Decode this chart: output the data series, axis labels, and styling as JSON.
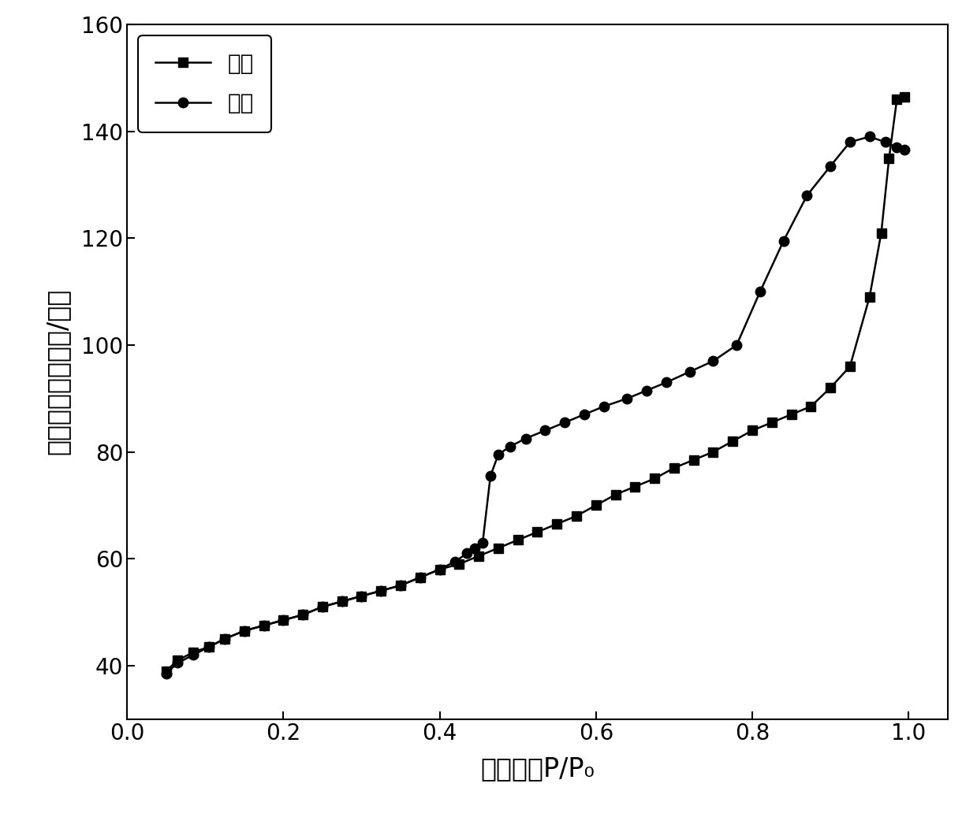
{
  "desorption_x": [
    0.05,
    0.065,
    0.085,
    0.105,
    0.125,
    0.15,
    0.175,
    0.2,
    0.225,
    0.25,
    0.275,
    0.3,
    0.325,
    0.35,
    0.375,
    0.4,
    0.425,
    0.45,
    0.475,
    0.5,
    0.525,
    0.55,
    0.575,
    0.6,
    0.625,
    0.65,
    0.675,
    0.7,
    0.725,
    0.75,
    0.775,
    0.8,
    0.825,
    0.85,
    0.875,
    0.9,
    0.925,
    0.95,
    0.965,
    0.975,
    0.985,
    0.995
  ],
  "desorption_y": [
    39.0,
    41.0,
    42.5,
    43.5,
    45.0,
    46.5,
    47.5,
    48.5,
    49.5,
    51.0,
    52.0,
    53.0,
    54.0,
    55.0,
    56.5,
    58.0,
    59.0,
    60.5,
    62.0,
    63.5,
    65.0,
    66.5,
    68.0,
    70.0,
    72.0,
    73.5,
    75.0,
    77.0,
    78.5,
    80.0,
    82.0,
    84.0,
    85.5,
    87.0,
    88.5,
    92.0,
    96.0,
    109.0,
    121.0,
    135.0,
    146.0,
    146.5
  ],
  "adsorption_x": [
    0.05,
    0.065,
    0.085,
    0.105,
    0.125,
    0.15,
    0.175,
    0.2,
    0.225,
    0.25,
    0.275,
    0.3,
    0.325,
    0.35,
    0.375,
    0.4,
    0.42,
    0.435,
    0.445,
    0.455,
    0.465,
    0.475,
    0.49,
    0.51,
    0.535,
    0.56,
    0.585,
    0.61,
    0.64,
    0.665,
    0.69,
    0.72,
    0.75,
    0.78,
    0.81,
    0.84,
    0.87,
    0.9,
    0.925,
    0.95,
    0.97,
    0.985,
    0.995
  ],
  "adsorption_y": [
    38.5,
    40.5,
    42.0,
    43.5,
    45.0,
    46.5,
    47.5,
    48.5,
    49.5,
    51.0,
    52.0,
    53.0,
    54.0,
    55.0,
    56.5,
    58.0,
    59.5,
    61.0,
    62.0,
    63.0,
    75.5,
    79.5,
    81.0,
    82.5,
    84.0,
    85.5,
    87.0,
    88.5,
    90.0,
    91.5,
    93.0,
    95.0,
    97.0,
    100.0,
    110.0,
    119.5,
    128.0,
    133.5,
    138.0,
    139.0,
    138.0,
    137.0,
    136.5
  ],
  "xlim": [
    0.0,
    1.05
  ],
  "ylim": [
    30,
    160
  ],
  "yticks": [
    40,
    60,
    80,
    100,
    120,
    140,
    160
  ],
  "xticks": [
    0.0,
    0.2,
    0.4,
    0.6,
    0.8,
    1.0
  ],
  "xlabel": "相对压力P/P₀",
  "ylabel": "吸附量（立方厘米/克）",
  "legend_desorption": "脱附",
  "legend_adsorption": "吸附",
  "line_color": "#000000",
  "marker_square": "s",
  "marker_circle": "o",
  "marker_size": 9,
  "linewidth": 1.8,
  "background_color": "#ffffff",
  "font_size_label": 24,
  "font_size_tick": 20,
  "font_size_legend": 20
}
